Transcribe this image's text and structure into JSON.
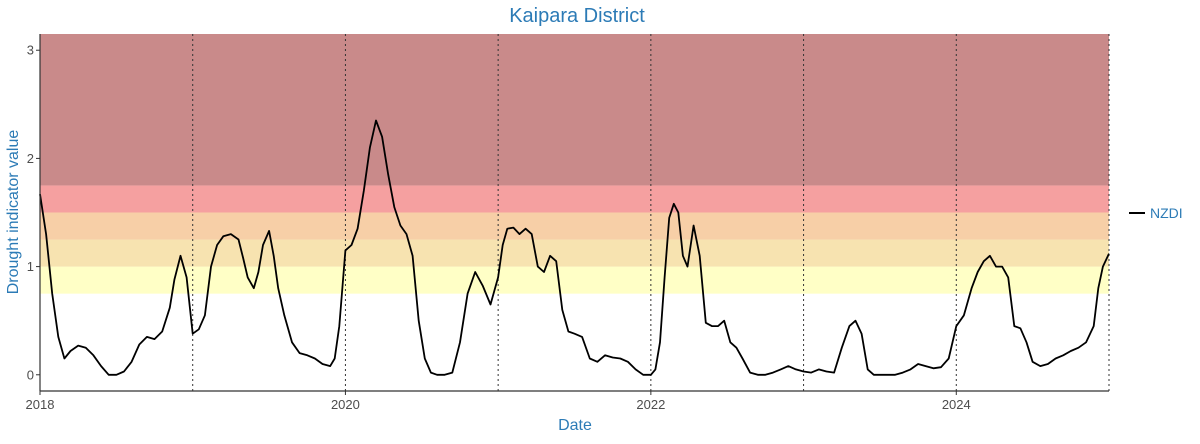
{
  "chart_data": {
    "type": "line",
    "title": "Kaipara District",
    "xlabel": "Date",
    "ylabel": "Drought indicator value",
    "x_ticks": [
      "2018",
      "2020",
      "2022",
      "2024"
    ],
    "y_ticks": [
      "0",
      "1",
      "2",
      "3"
    ],
    "xlim": [
      2018.0,
      2025.0
    ],
    "ylim": [
      -0.15,
      3.15
    ],
    "grid": false,
    "year_reference_lines": "dotted vertical line at the start of each year (2019–2025)",
    "legend_position": "right",
    "colors": {
      "title": "#2c7bb6",
      "line": "#000000",
      "bands": [
        "#ffffc6",
        "#f7e3b0",
        "#f7cfa7",
        "#f5a0a0",
        "#c98a8a"
      ]
    },
    "bands": [
      {
        "from": 0.75,
        "to": 1.0
      },
      {
        "from": 1.0,
        "to": 1.25
      },
      {
        "from": 1.25,
        "to": 1.5
      },
      {
        "from": 1.5,
        "to": 1.75
      },
      {
        "from": 1.75,
        "to": 3.15
      }
    ],
    "series": [
      {
        "name": "NZDI",
        "x": [
          2018.0,
          2018.04,
          2018.08,
          2018.12,
          2018.16,
          2018.2,
          2018.25,
          2018.3,
          2018.35,
          2018.4,
          2018.45,
          2018.5,
          2018.55,
          2018.6,
          2018.65,
          2018.7,
          2018.75,
          2018.8,
          2018.85,
          2018.88,
          2018.92,
          2018.96,
          2019.0,
          2019.04,
          2019.08,
          2019.12,
          2019.16,
          2019.2,
          2019.25,
          2019.3,
          2019.33,
          2019.36,
          2019.4,
          2019.43,
          2019.46,
          2019.5,
          2019.53,
          2019.56,
          2019.6,
          2019.65,
          2019.7,
          2019.75,
          2019.8,
          2019.85,
          2019.9,
          2019.93,
          2019.96,
          2020.0,
          2020.04,
          2020.08,
          2020.12,
          2020.16,
          2020.2,
          2020.24,
          2020.28,
          2020.32,
          2020.36,
          2020.4,
          2020.44,
          2020.48,
          2020.52,
          2020.56,
          2020.6,
          2020.65,
          2020.7,
          2020.75,
          2020.8,
          2020.85,
          2020.9,
          2020.95,
          2021.0,
          2021.03,
          2021.06,
          2021.1,
          2021.14,
          2021.18,
          2021.22,
          2021.26,
          2021.3,
          2021.34,
          2021.38,
          2021.42,
          2021.46,
          2021.5,
          2021.55,
          2021.6,
          2021.65,
          2021.7,
          2021.75,
          2021.8,
          2021.85,
          2021.9,
          2021.95,
          2022.0,
          2022.03,
          2022.06,
          2022.09,
          2022.12,
          2022.15,
          2022.18,
          2022.21,
          2022.24,
          2022.28,
          2022.32,
          2022.36,
          2022.4,
          2022.44,
          2022.48,
          2022.52,
          2022.56,
          2022.6,
          2022.65,
          2022.7,
          2022.75,
          2022.8,
          2022.85,
          2022.9,
          2022.95,
          2023.0,
          2023.05,
          2023.1,
          2023.15,
          2023.2,
          2023.25,
          2023.3,
          2023.34,
          2023.38,
          2023.42,
          2023.46,
          2023.5,
          2023.55,
          2023.6,
          2023.65,
          2023.7,
          2023.75,
          2023.8,
          2023.85,
          2023.9,
          2023.95,
          2024.0,
          2024.05,
          2024.1,
          2024.14,
          2024.18,
          2024.22,
          2024.26,
          2024.3,
          2024.34,
          2024.38,
          2024.42,
          2024.46,
          2024.5,
          2024.55,
          2024.6,
          2024.65,
          2024.7,
          2024.75,
          2024.8,
          2024.85,
          2024.9,
          2024.93,
          2024.96,
          2025.0
        ],
        "y": [
          1.67,
          1.3,
          0.75,
          0.35,
          0.15,
          0.22,
          0.27,
          0.25,
          0.18,
          0.08,
          0.0,
          0.0,
          0.03,
          0.12,
          0.28,
          0.35,
          0.33,
          0.4,
          0.62,
          0.88,
          1.1,
          0.9,
          0.38,
          0.42,
          0.55,
          1.0,
          1.2,
          1.28,
          1.3,
          1.25,
          1.08,
          0.9,
          0.8,
          0.95,
          1.2,
          1.33,
          1.1,
          0.8,
          0.55,
          0.3,
          0.2,
          0.18,
          0.15,
          0.1,
          0.08,
          0.15,
          0.45,
          1.15,
          1.2,
          1.35,
          1.7,
          2.1,
          2.35,
          2.2,
          1.85,
          1.55,
          1.38,
          1.3,
          1.1,
          0.5,
          0.15,
          0.02,
          0.0,
          0.0,
          0.02,
          0.3,
          0.75,
          0.95,
          0.82,
          0.65,
          0.9,
          1.2,
          1.35,
          1.36,
          1.3,
          1.35,
          1.3,
          1.0,
          0.95,
          1.1,
          1.05,
          0.6,
          0.4,
          0.38,
          0.35,
          0.15,
          0.12,
          0.18,
          0.16,
          0.15,
          0.12,
          0.05,
          0.0,
          0.0,
          0.05,
          0.3,
          0.9,
          1.45,
          1.58,
          1.5,
          1.1,
          1.0,
          1.38,
          1.1,
          0.48,
          0.45,
          0.45,
          0.5,
          0.3,
          0.25,
          0.15,
          0.02,
          0.0,
          0.0,
          0.02,
          0.05,
          0.08,
          0.05,
          0.03,
          0.02,
          0.05,
          0.03,
          0.02,
          0.25,
          0.45,
          0.5,
          0.38,
          0.05,
          0.0,
          0.0,
          0.0,
          0.0,
          0.02,
          0.05,
          0.1,
          0.08,
          0.06,
          0.07,
          0.15,
          0.45,
          0.55,
          0.8,
          0.95,
          1.05,
          1.1,
          1.0,
          1.0,
          0.9,
          0.45,
          0.43,
          0.3,
          0.12,
          0.08,
          0.1,
          0.15,
          0.18,
          0.22,
          0.25,
          0.3,
          0.45,
          0.8,
          1.0,
          1.12
        ]
      }
    ]
  }
}
